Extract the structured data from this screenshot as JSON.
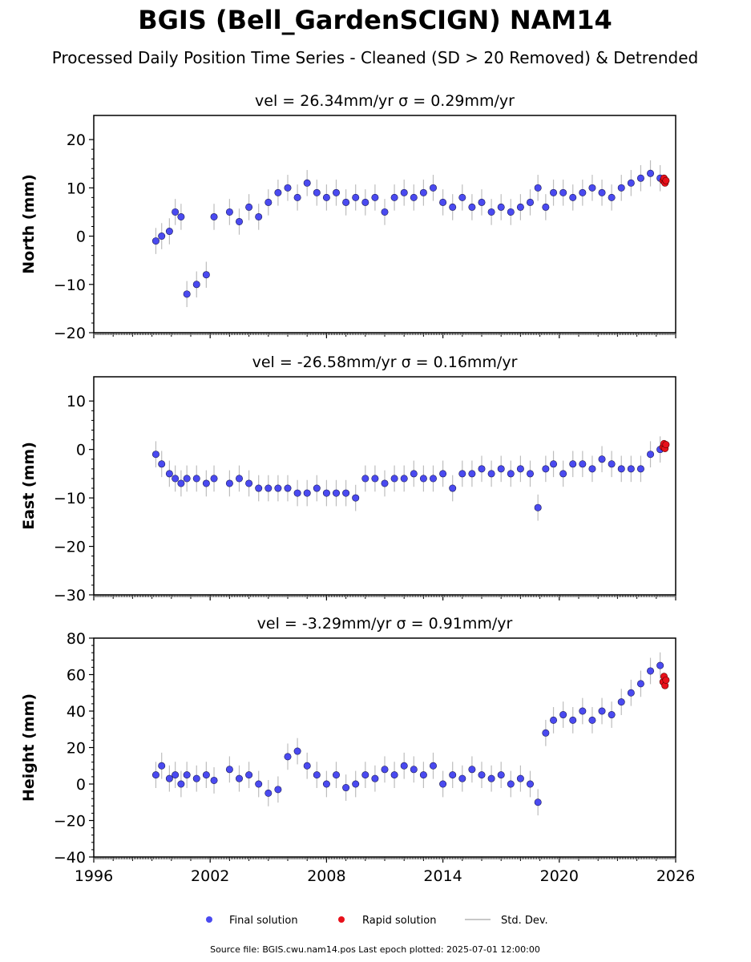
{
  "title": "BGIS (Bell_GardenSCIGN) NAM14",
  "subtitle": "Processed Daily Position Time Series - Cleaned (SD > 20 Removed) & Detrended",
  "footer": "Source file: BGIS.cwu.nam14.pos  Last epoch plotted: 2025-07-01 12:00:00",
  "legend": {
    "final": "Final solution",
    "rapid": "Rapid solution",
    "std": "Std. Dev."
  },
  "colors": {
    "final": "#4a4af0",
    "rapid": "#e8101a",
    "std": "#bdbdbd"
  },
  "chart_data": [
    {
      "type": "scatter",
      "panel_title": "vel = 26.34mm/yr   σ = 0.29mm/yr",
      "ylabel": "North (mm)",
      "ylim": [
        -20,
        25
      ],
      "yticks": [
        -20,
        -10,
        0,
        10,
        20
      ],
      "xlim": [
        1996,
        2026
      ],
      "xticks": [
        1996,
        2002,
        2008,
        2014,
        2020,
        2026
      ],
      "series": [
        {
          "name": "Final solution",
          "x": [
            1999.2,
            1999.5,
            1999.9,
            2000.2,
            2000.5,
            2000.8,
            2001.3,
            2001.8,
            2002.2,
            2003.0,
            2003.5,
            2004.0,
            2004.5,
            2005.0,
            2005.5,
            2006.0,
            2006.5,
            2007.0,
            2007.5,
            2008.0,
            2008.5,
            2009.0,
            2009.5,
            2010.0,
            2010.5,
            2011.0,
            2011.5,
            2012.0,
            2012.5,
            2013.0,
            2013.5,
            2014.0,
            2014.5,
            2015.0,
            2015.5,
            2016.0,
            2016.5,
            2017.0,
            2017.5,
            2018.0,
            2018.5,
            2018.9,
            2019.3,
            2019.7,
            2020.2,
            2020.7,
            2021.2,
            2021.7,
            2022.2,
            2022.7,
            2023.2,
            2023.7,
            2024.2,
            2024.7,
            2025.2
          ],
          "y": [
            -1,
            0,
            1,
            5,
            4,
            -12,
            -10,
            -8,
            4,
            5,
            3,
            6,
            4,
            7,
            9,
            10,
            8,
            11,
            9,
            8,
            9,
            7,
            8,
            7,
            8,
            5,
            8,
            9,
            8,
            9,
            10,
            7,
            6,
            8,
            6,
            7,
            5,
            6,
            5,
            6,
            7,
            10,
            6,
            9,
            9,
            8,
            9,
            10,
            9,
            8,
            10,
            11,
            12,
            13,
            12
          ]
        },
        {
          "name": "Rapid solution",
          "x": [
            2025.35,
            2025.4,
            2025.45,
            2025.5
          ],
          "y": [
            11.5,
            12,
            11,
            11.5
          ]
        }
      ]
    },
    {
      "type": "scatter",
      "panel_title": "vel = -26.58mm/yr   σ = 0.16mm/yr",
      "ylabel": "East (mm)",
      "ylim": [
        -30,
        15
      ],
      "yticks": [
        -30,
        -20,
        -10,
        0,
        10
      ],
      "xlim": [
        1996,
        2026
      ],
      "xticks": [
        1996,
        2002,
        2008,
        2014,
        2020,
        2026
      ],
      "series": [
        {
          "name": "Final solution",
          "x": [
            1999.2,
            1999.5,
            1999.9,
            2000.2,
            2000.5,
            2000.8,
            2001.3,
            2001.8,
            2002.2,
            2003.0,
            2003.5,
            2004.0,
            2004.5,
            2005.0,
            2005.5,
            2006.0,
            2006.5,
            2007.0,
            2007.5,
            2008.0,
            2008.5,
            2009.0,
            2009.5,
            2010.0,
            2010.5,
            2011.0,
            2011.5,
            2012.0,
            2012.5,
            2013.0,
            2013.5,
            2014.0,
            2014.5,
            2015.0,
            2015.5,
            2016.0,
            2016.5,
            2017.0,
            2017.5,
            2018.0,
            2018.5,
            2018.9,
            2019.3,
            2019.7,
            2020.2,
            2020.7,
            2021.2,
            2021.7,
            2022.2,
            2022.7,
            2023.2,
            2023.7,
            2024.2,
            2024.7,
            2025.2
          ],
          "y": [
            -1,
            -3,
            -5,
            -6,
            -7,
            -6,
            -6,
            -7,
            -6,
            -7,
            -6,
            -7,
            -8,
            -8,
            -8,
            -8,
            -9,
            -9,
            -8,
            -9,
            -9,
            -9,
            -10,
            -6,
            -6,
            -7,
            -6,
            -6,
            -5,
            -6,
            -6,
            -5,
            -8,
            -5,
            -5,
            -4,
            -5,
            -4,
            -5,
            -4,
            -5,
            -12,
            -4,
            -3,
            -5,
            -3,
            -3,
            -4,
            -2,
            -3,
            -4,
            -4,
            -4,
            -1,
            0
          ]
        },
        {
          "name": "Rapid solution",
          "x": [
            2025.35,
            2025.4,
            2025.45,
            2025.5
          ],
          "y": [
            0.5,
            1.2,
            0.2,
            1.0
          ]
        }
      ]
    },
    {
      "type": "scatter",
      "panel_title": "vel = -3.29mm/yr   σ = 0.91mm/yr",
      "ylabel": "Height (mm)",
      "ylim": [
        -40,
        80
      ],
      "yticks": [
        -40,
        -20,
        0,
        20,
        40,
        60,
        80
      ],
      "xlim": [
        1996,
        2026
      ],
      "xticks": [
        1996,
        2002,
        2008,
        2014,
        2020,
        2026
      ],
      "series": [
        {
          "name": "Final solution",
          "x": [
            1999.2,
            1999.5,
            1999.9,
            2000.2,
            2000.5,
            2000.8,
            2001.3,
            2001.8,
            2002.2,
            2003.0,
            2003.5,
            2004.0,
            2004.5,
            2005.0,
            2005.5,
            2006.0,
            2006.5,
            2007.0,
            2007.5,
            2008.0,
            2008.5,
            2009.0,
            2009.5,
            2010.0,
            2010.5,
            2011.0,
            2011.5,
            2012.0,
            2012.5,
            2013.0,
            2013.5,
            2014.0,
            2014.5,
            2015.0,
            2015.5,
            2016.0,
            2016.5,
            2017.0,
            2017.5,
            2018.0,
            2018.5,
            2018.9,
            2019.3,
            2019.7,
            2020.2,
            2020.7,
            2021.2,
            2021.7,
            2022.2,
            2022.7,
            2023.2,
            2023.7,
            2024.2,
            2024.7,
            2025.2
          ],
          "y": [
            5,
            10,
            3,
            5,
            0,
            5,
            3,
            5,
            2,
            8,
            3,
            5,
            0,
            -5,
            -3,
            15,
            18,
            10,
            5,
            0,
            5,
            -2,
            0,
            5,
            3,
            8,
            5,
            10,
            8,
            5,
            10,
            0,
            5,
            3,
            8,
            5,
            3,
            5,
            0,
            3,
            0,
            -10,
            28,
            35,
            38,
            35,
            40,
            35,
            40,
            38,
            45,
            50,
            55,
            62,
            65
          ]
        },
        {
          "name": "Rapid solution",
          "x": [
            2025.35,
            2025.4,
            2025.45,
            2025.5
          ],
          "y": [
            56,
            59,
            54,
            57
          ]
        }
      ]
    }
  ]
}
